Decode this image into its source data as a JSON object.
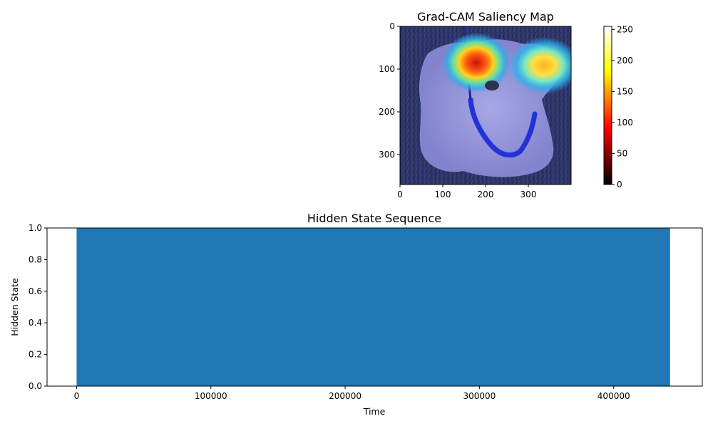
{
  "chart_data": [
    {
      "type": "heatmap",
      "title": "Grad-CAM Saliency Map",
      "xlabel": "",
      "ylabel": "",
      "xlim": [
        0,
        400
      ],
      "ylim": [
        370,
        0
      ],
      "x_ticks": [
        0,
        100,
        200,
        300
      ],
      "y_ticks": [
        0,
        100,
        200,
        300
      ],
      "background": "overlay of a small white dog on grass with a blue harness",
      "hotspots": [
        {
          "x": 180,
          "y": 85,
          "intensity": 255
        },
        {
          "x": 340,
          "y": 90,
          "intensity": 200
        }
      ],
      "colorbar": {
        "colormap": "hot",
        "range": [
          0,
          255
        ],
        "ticks": [
          0,
          50,
          100,
          150,
          200,
          250
        ]
      }
    },
    {
      "type": "bar",
      "title": "Hidden State Sequence",
      "xlabel": "Time",
      "ylabel": "Hidden State",
      "xlim": [
        -22000,
        466000
      ],
      "ylim": [
        0,
        1
      ],
      "x_ticks": [
        0,
        100000,
        200000,
        300000,
        400000
      ],
      "y_ticks": [
        "0.0",
        "0.2",
        "0.4",
        "0.6",
        "0.8",
        "1.0"
      ],
      "series": [
        {
          "start": 0,
          "end": 442000,
          "value": 1.0,
          "color": "#1f77b4"
        }
      ]
    }
  ]
}
